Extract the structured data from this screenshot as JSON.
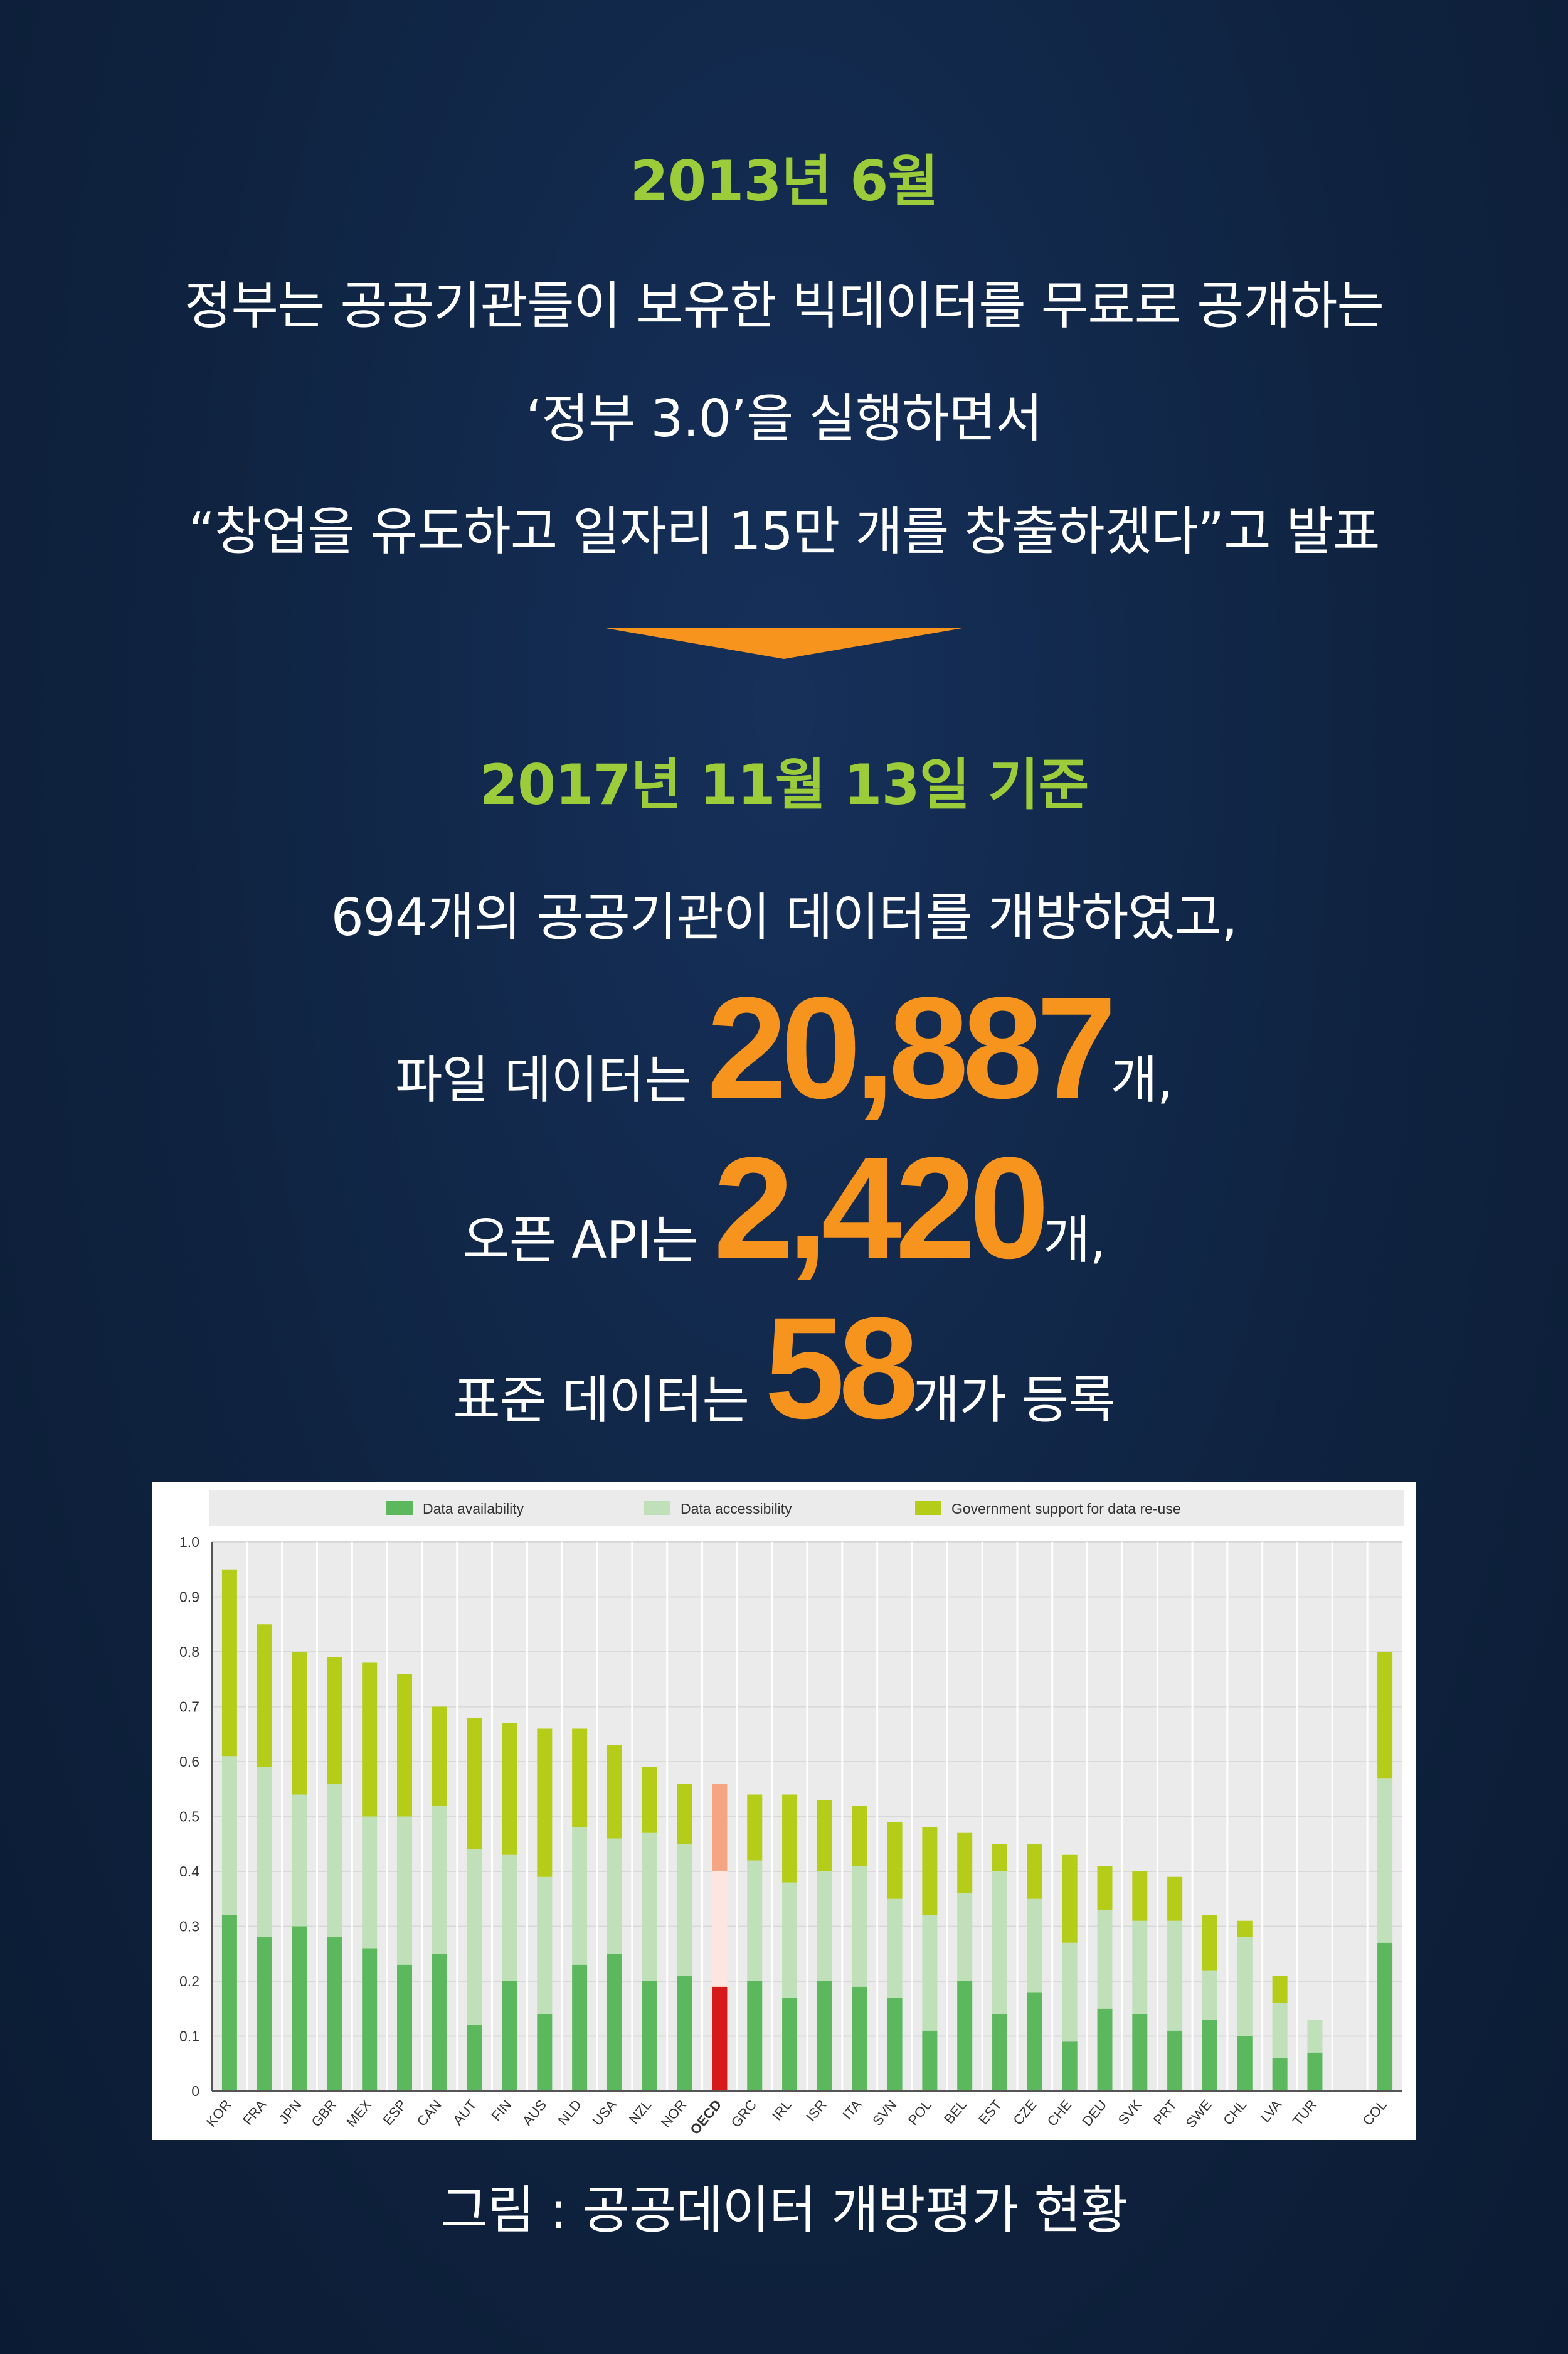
{
  "header": {
    "date1": "2013년 6월",
    "lines1": [
      "정부는 공공기관들이 보유한 빅데이터를 무료로 공개하는",
      "‘정부 3.0’을 실행하면서",
      "“창업을 유도하고 일자리 15만 개를 창출하겠다”고 발표"
    ],
    "date2": "2017년 11월 13일 기준",
    "line2": "694개의 공공기관이 데이터를 개방하였고,"
  },
  "stats": {
    "file": {
      "prefix": "파일 데이터는 ",
      "number": "20,887",
      "suffix": "개,"
    },
    "api": {
      "prefix": "오픈 API는 ",
      "number": "2,420",
      "suffix": "개,"
    },
    "std": {
      "prefix": "표준 데이터는 ",
      "number": "58",
      "suffix": "개가 등록"
    }
  },
  "caption": "그림 : 공공데이터 개방평가 현황",
  "colors": {
    "availability": "#5cb85c",
    "accessibility": "#bfe0b8",
    "support": "#b5cc18",
    "oecd_availability": "#d7191c",
    "oecd_accessibility": "#fde6e0",
    "oecd_support": "#f4a582",
    "accent": "#f7941d",
    "heading": "#9ccc3a"
  },
  "chart_data": {
    "type": "bar",
    "stacked": true,
    "legend_position": "top",
    "categories": [
      "KOR",
      "FRA",
      "JPN",
      "GBR",
      "MEX",
      "ESP",
      "CAN",
      "AUT",
      "FIN",
      "AUS",
      "NLD",
      "USA",
      "NZL",
      "NOR",
      "OECD",
      "GRC",
      "IRL",
      "ISR",
      "ITA",
      "SVN",
      "POL",
      "BEL",
      "EST",
      "CZE",
      "CHE",
      "DEU",
      "SVK",
      "PRT",
      "SWE",
      "CHL",
      "LVA",
      "TUR",
      "",
      "COL"
    ],
    "highlight_category": "OECD",
    "series": [
      {
        "name": "Data availability",
        "values": [
          0.32,
          0.28,
          0.3,
          0.28,
          0.26,
          0.23,
          0.25,
          0.12,
          0.2,
          0.14,
          0.23,
          0.25,
          0.2,
          0.21,
          0.19,
          0.2,
          0.17,
          0.2,
          0.19,
          0.17,
          0.11,
          0.2,
          0.14,
          0.18,
          0.09,
          0.15,
          0.14,
          0.11,
          0.13,
          0.1,
          0.06,
          0.07,
          null,
          0.27
        ]
      },
      {
        "name": "Data accessibility",
        "values": [
          0.29,
          0.31,
          0.24,
          0.28,
          0.24,
          0.27,
          0.27,
          0.32,
          0.23,
          0.25,
          0.25,
          0.21,
          0.27,
          0.24,
          0.21,
          0.22,
          0.21,
          0.2,
          0.22,
          0.18,
          0.21,
          0.16,
          0.26,
          0.17,
          0.18,
          0.18,
          0.17,
          0.2,
          0.09,
          0.18,
          0.1,
          0.06,
          null,
          0.3
        ]
      },
      {
        "name": "Government support for data re-use",
        "values": [
          0.34,
          0.26,
          0.26,
          0.23,
          0.28,
          0.26,
          0.18,
          0.24,
          0.24,
          0.27,
          0.18,
          0.17,
          0.12,
          0.11,
          0.16,
          0.12,
          0.16,
          0.13,
          0.11,
          0.14,
          0.16,
          0.11,
          0.05,
          0.1,
          0.16,
          0.08,
          0.09,
          0.08,
          0.1,
          0.03,
          0.05,
          0.0,
          null,
          0.23
        ]
      }
    ],
    "yticks": [
      "0",
      "0.1",
      "0.2",
      "0.3",
      "0.4",
      "0.5",
      "0.6",
      "0.7",
      "0.8",
      "0.9",
      "1.0"
    ],
    "ylim": [
      0,
      1.0
    ],
    "grid": true
  }
}
